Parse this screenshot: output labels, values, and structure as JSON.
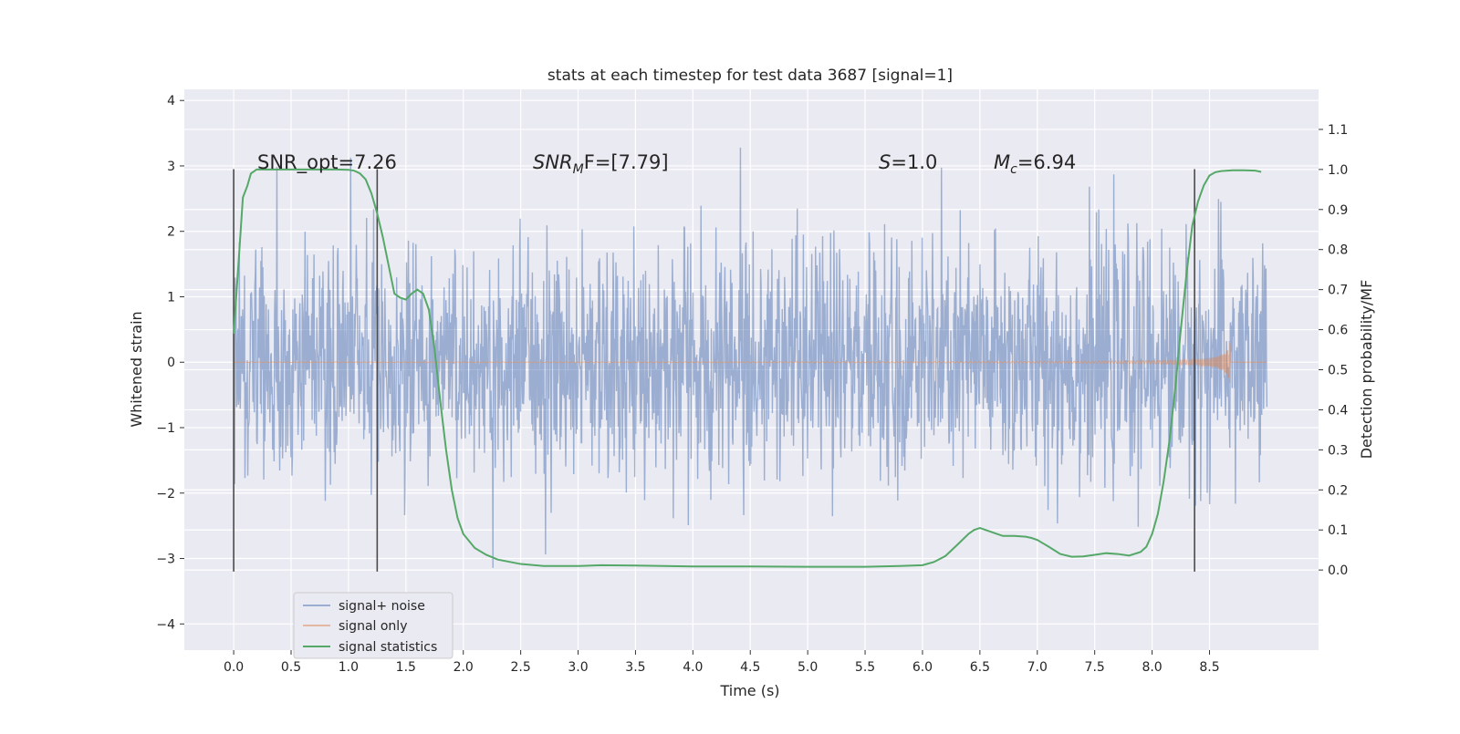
{
  "chart_data": {
    "type": "line",
    "title": "stats at each timestep for test data 3687 [signal=1]",
    "xlabel": "Time (s)",
    "ylabel_left": "Whitened strain",
    "ylabel_right": "Detection probability/MF",
    "xlim": [
      -0.43,
      9.45
    ],
    "ylim_left": [
      -4.4,
      4.17
    ],
    "ylim_right": [
      -0.2,
      1.2
    ],
    "x_ticks": [
      0.0,
      0.5,
      1.0,
      1.5,
      2.0,
      2.5,
      3.0,
      3.5,
      4.0,
      4.5,
      5.0,
      5.5,
      6.0,
      6.5,
      7.0,
      7.5,
      8.0,
      8.5
    ],
    "x_tick_labels": [
      "0.0",
      "0.5",
      "1.0",
      "1.5",
      "2.0",
      "2.5",
      "3.0",
      "3.5",
      "4.0",
      "4.5",
      "5.0",
      "5.5",
      "6.0",
      "6.5",
      "7.0",
      "7.5",
      "8.0",
      "8.5"
    ],
    "y_left_ticks": [
      -4,
      -3,
      -2,
      -1,
      0,
      1,
      2,
      3,
      4
    ],
    "y_left_tick_labels": [
      "−4",
      "−3",
      "−2",
      "−1",
      "0",
      "1",
      "2",
      "3",
      "4"
    ],
    "y_right_ticks": [
      0.0,
      0.1,
      0.2,
      0.3,
      0.4,
      0.5,
      0.6,
      0.7,
      0.8,
      0.9,
      1.0,
      1.1
    ],
    "y_right_tick_labels": [
      "0.0",
      "0.1",
      "0.2",
      "0.3",
      "0.4",
      "0.5",
      "0.6",
      "0.7",
      "0.8",
      "0.9",
      "1.0",
      "1.1"
    ],
    "grid": true,
    "legend_position": "bottom-left",
    "series": [
      {
        "name": "signal+ noise",
        "color": "#4c72b0",
        "axis": "left",
        "kind": "noise",
        "x_range": [
          0.0,
          9.0
        ],
        "typical_amplitude": 1.0,
        "extreme_range": [
          -4.0,
          3.8
        ]
      },
      {
        "name": "signal only",
        "color": "#dd8452",
        "axis": "left",
        "kind": "chirp",
        "x_range": [
          0.0,
          9.0
        ],
        "merger_time": 8.68,
        "peak_amplitude": 0.75
      },
      {
        "name": "signal statistics",
        "color": "#55a868",
        "axis": "right",
        "x": [
          0.0,
          0.05,
          0.08,
          0.12,
          0.15,
          0.2,
          0.25,
          0.3,
          0.4,
          0.5,
          0.6,
          0.7,
          0.8,
          0.9,
          1.0,
          1.05,
          1.1,
          1.15,
          1.2,
          1.25,
          1.3,
          1.35,
          1.4,
          1.45,
          1.5,
          1.55,
          1.6,
          1.65,
          1.7,
          1.75,
          1.8,
          1.85,
          1.9,
          1.95,
          2.0,
          2.1,
          2.2,
          2.3,
          2.5,
          2.7,
          3.0,
          3.2,
          3.5,
          4.0,
          4.5,
          5.0,
          5.5,
          5.8,
          6.0,
          6.1,
          6.2,
          6.3,
          6.4,
          6.45,
          6.5,
          6.6,
          6.7,
          6.8,
          6.9,
          6.95,
          7.0,
          7.1,
          7.2,
          7.3,
          7.4,
          7.5,
          7.6,
          7.7,
          7.8,
          7.9,
          7.95,
          8.0,
          8.05,
          8.1,
          8.15,
          8.2,
          8.25,
          8.3,
          8.35,
          8.4,
          8.45,
          8.5,
          8.55,
          8.6,
          8.7,
          8.8,
          8.9,
          8.95
        ],
        "y": [
          0.59,
          0.8,
          0.93,
          0.96,
          0.99,
          1.0,
          1.0,
          1.0,
          1.0,
          1.0,
          1.0,
          1.0,
          1.0,
          1.0,
          0.999,
          0.997,
          0.99,
          0.975,
          0.94,
          0.89,
          0.83,
          0.76,
          0.69,
          0.68,
          0.675,
          0.69,
          0.7,
          0.69,
          0.65,
          0.55,
          0.42,
          0.3,
          0.2,
          0.13,
          0.09,
          0.055,
          0.038,
          0.026,
          0.015,
          0.01,
          0.01,
          0.012,
          0.011,
          0.009,
          0.009,
          0.008,
          0.008,
          0.01,
          0.012,
          0.02,
          0.035,
          0.062,
          0.09,
          0.1,
          0.105,
          0.095,
          0.085,
          0.085,
          0.083,
          0.08,
          0.075,
          0.058,
          0.04,
          0.033,
          0.034,
          0.038,
          0.042,
          0.04,
          0.036,
          0.045,
          0.058,
          0.09,
          0.14,
          0.22,
          0.32,
          0.45,
          0.6,
          0.74,
          0.86,
          0.92,
          0.96,
          0.985,
          0.993,
          0.996,
          0.998,
          0.998,
          0.997,
          0.994
        ]
      }
    ],
    "vertical_lines": [
      {
        "x": 0.0,
        "y_range": [
          -3.2,
          2.95
        ]
      },
      {
        "x": 1.25,
        "y_range": [
          -3.2,
          2.95
        ]
      },
      {
        "x": 8.37,
        "y_range": [
          -3.2,
          2.95
        ]
      }
    ],
    "annotations": [
      {
        "id": "snr-opt",
        "text": "SNR_opt=7.26",
        "x": 0.2
      },
      {
        "id": "snr-mf",
        "text": "F=[7.79]",
        "italic_prefix": "SNR",
        "subscript": "M",
        "italic_f": true,
        "x": 2.6
      },
      {
        "id": "s-val",
        "text": "=1.0",
        "italic_prefix": "S",
        "x": 5.6
      },
      {
        "id": "mc-val",
        "text": "=6.94",
        "italic_prefix": "M",
        "subscript": "c",
        "x": 6.6
      }
    ]
  }
}
